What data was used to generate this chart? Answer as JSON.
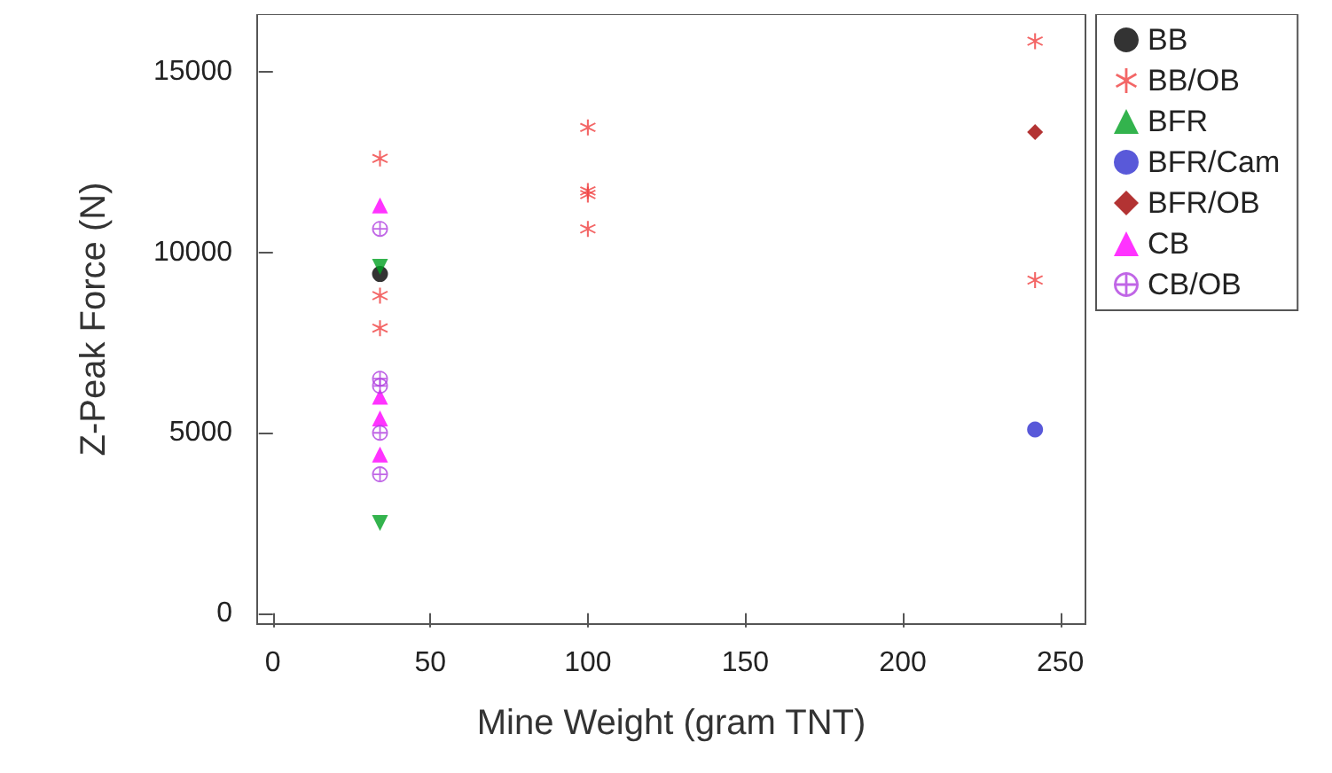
{
  "chart_data": {
    "type": "scatter",
    "xlabel": "Mine Weight (gram TNT)",
    "ylabel": "Z-Peak Force (N)",
    "xlim": [
      -5,
      258
    ],
    "ylim": [
      -300,
      16600
    ],
    "xticks": [
      0,
      50,
      100,
      150,
      200,
      250
    ],
    "yticks": [
      0,
      5000,
      10000,
      15000
    ],
    "grid": false,
    "legend": "right",
    "series": [
      {
        "name": "BB",
        "color": "#000000",
        "marker": "circle",
        "x": [
          34
        ],
        "values": [
          9400
        ]
      },
      {
        "name": "BB/OB",
        "color": "#f04040",
        "marker": "star",
        "x": [
          34,
          34,
          34,
          100,
          100,
          100,
          100,
          242,
          242
        ],
        "values": [
          12600,
          8800,
          7900,
          13460,
          11700,
          11600,
          10650,
          15850,
          9230
        ]
      },
      {
        "name": "BFR",
        "color": "#00a020",
        "marker": "triangle-down",
        "x": [
          34,
          34
        ],
        "values": [
          9600,
          2500
        ]
      },
      {
        "name": "BFR/Cam",
        "color": "#3030d0",
        "marker": "circle",
        "x": [
          242
        ],
        "values": [
          5090
        ]
      },
      {
        "name": "BFR/OB",
        "color": "#a00000",
        "marker": "diamond",
        "x": [
          242
        ],
        "values": [
          13330
        ]
      },
      {
        "name": "CB",
        "color": "#ff00ff",
        "marker": "triangle",
        "x": [
          34,
          34,
          34,
          34
        ],
        "values": [
          11300,
          6000,
          5400,
          4400
        ]
      },
      {
        "name": "CB/OB",
        "color": "#b040e0",
        "marker": "cross",
        "x": [
          34,
          34,
          34,
          34,
          34
        ],
        "values": [
          10650,
          6500,
          6300,
          5000,
          3850
        ]
      }
    ]
  }
}
